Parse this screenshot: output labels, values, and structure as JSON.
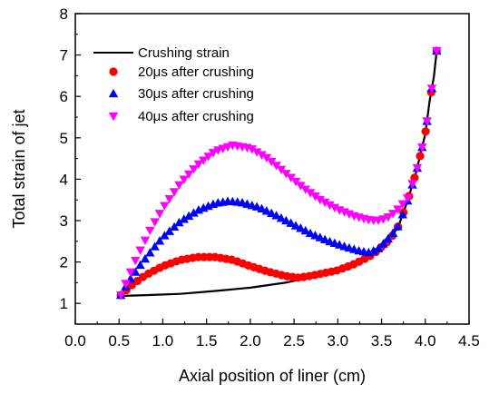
{
  "chart_data": {
    "type": "scatter",
    "title": "",
    "xlabel": "Axial position of liner (cm)",
    "ylabel": "Total strain of jet",
    "xlim": [
      0.0,
      4.5
    ],
    "ylim": [
      0.5,
      8.0
    ],
    "xticks": [
      "0.0",
      "0.5",
      "1.0",
      "1.5",
      "2.0",
      "2.5",
      "3.0",
      "3.5",
      "4.0",
      "4.5"
    ],
    "yticks": [
      "1",
      "2",
      "3",
      "4",
      "5",
      "6",
      "7",
      "8"
    ],
    "grid": false,
    "legend_position": "top-left",
    "series": [
      {
        "name": "Crushing strain",
        "style": "line",
        "marker": "none",
        "color": "#000000",
        "points": [
          [
            0.52,
            1.18
          ],
          [
            0.8,
            1.2
          ],
          [
            1.2,
            1.23
          ],
          [
            1.6,
            1.3
          ],
          [
            2.0,
            1.38
          ],
          [
            2.4,
            1.5
          ],
          [
            2.8,
            1.68
          ],
          [
            3.0,
            1.8
          ],
          [
            3.2,
            1.96
          ],
          [
            3.4,
            2.18
          ],
          [
            3.6,
            2.55
          ],
          [
            3.7,
            2.9
          ],
          [
            3.8,
            3.5
          ],
          [
            3.9,
            4.2
          ],
          [
            4.0,
            5.1
          ],
          [
            4.05,
            5.9
          ],
          [
            4.1,
            6.5
          ],
          [
            4.13,
            7.1
          ]
        ]
      },
      {
        "name": "20μs after crushing",
        "style": "markers",
        "marker": "circle",
        "color": "#ff0000",
        "points": [
          [
            0.52,
            1.2
          ],
          [
            0.65,
            1.45
          ],
          [
            0.8,
            1.68
          ],
          [
            1.0,
            1.9
          ],
          [
            1.2,
            2.05
          ],
          [
            1.4,
            2.12
          ],
          [
            1.6,
            2.12
          ],
          [
            1.8,
            2.05
          ],
          [
            2.0,
            1.9
          ],
          [
            2.2,
            1.77
          ],
          [
            2.4,
            1.66
          ],
          [
            2.55,
            1.62
          ],
          [
            2.7,
            1.67
          ],
          [
            3.0,
            1.8
          ],
          [
            3.2,
            1.96
          ],
          [
            3.4,
            2.18
          ],
          [
            3.6,
            2.55
          ],
          [
            3.7,
            2.9
          ],
          [
            3.8,
            3.5
          ],
          [
            3.9,
            4.2
          ],
          [
            4.0,
            5.1
          ],
          [
            4.05,
            5.9
          ],
          [
            4.1,
            6.5
          ],
          [
            4.13,
            7.1
          ]
        ]
      },
      {
        "name": "30μs after crushing",
        "style": "markers",
        "marker": "triangle-up",
        "color": "#0000ff",
        "points": [
          [
            0.52,
            1.2
          ],
          [
            0.6,
            1.5
          ],
          [
            0.75,
            1.95
          ],
          [
            0.9,
            2.35
          ],
          [
            1.0,
            2.6
          ],
          [
            1.2,
            2.98
          ],
          [
            1.4,
            3.25
          ],
          [
            1.6,
            3.42
          ],
          [
            1.75,
            3.47
          ],
          [
            1.9,
            3.44
          ],
          [
            2.1,
            3.32
          ],
          [
            2.3,
            3.12
          ],
          [
            2.5,
            2.9
          ],
          [
            2.7,
            2.68
          ],
          [
            2.9,
            2.5
          ],
          [
            3.1,
            2.36
          ],
          [
            3.25,
            2.27
          ],
          [
            3.35,
            2.23
          ],
          [
            3.45,
            2.3
          ],
          [
            3.55,
            2.5
          ],
          [
            3.65,
            2.75
          ],
          [
            3.7,
            2.9
          ],
          [
            3.8,
            3.5
          ],
          [
            3.9,
            4.2
          ],
          [
            4.0,
            5.1
          ],
          [
            4.05,
            5.9
          ],
          [
            4.1,
            6.5
          ],
          [
            4.13,
            7.1
          ]
        ]
      },
      {
        "name": "40μs after crushing",
        "style": "markers",
        "marker": "triangle-down",
        "color": "#ff00ff",
        "points": [
          [
            0.52,
            1.2
          ],
          [
            0.6,
            1.6
          ],
          [
            0.7,
            2.1
          ],
          [
            0.85,
            2.75
          ],
          [
            1.0,
            3.3
          ],
          [
            1.2,
            3.9
          ],
          [
            1.4,
            4.35
          ],
          [
            1.6,
            4.68
          ],
          [
            1.8,
            4.82
          ],
          [
            2.0,
            4.75
          ],
          [
            2.2,
            4.5
          ],
          [
            2.4,
            4.15
          ],
          [
            2.6,
            3.8
          ],
          [
            2.8,
            3.5
          ],
          [
            3.0,
            3.27
          ],
          [
            3.2,
            3.1
          ],
          [
            3.35,
            3.02
          ],
          [
            3.45,
            3.0
          ],
          [
            3.55,
            3.05
          ],
          [
            3.62,
            3.15
          ],
          [
            3.7,
            3.3
          ],
          [
            3.8,
            3.55
          ],
          [
            3.9,
            4.2
          ],
          [
            4.0,
            5.1
          ],
          [
            4.05,
            5.9
          ],
          [
            4.1,
            6.5
          ],
          [
            4.13,
            7.1
          ]
        ]
      }
    ]
  }
}
